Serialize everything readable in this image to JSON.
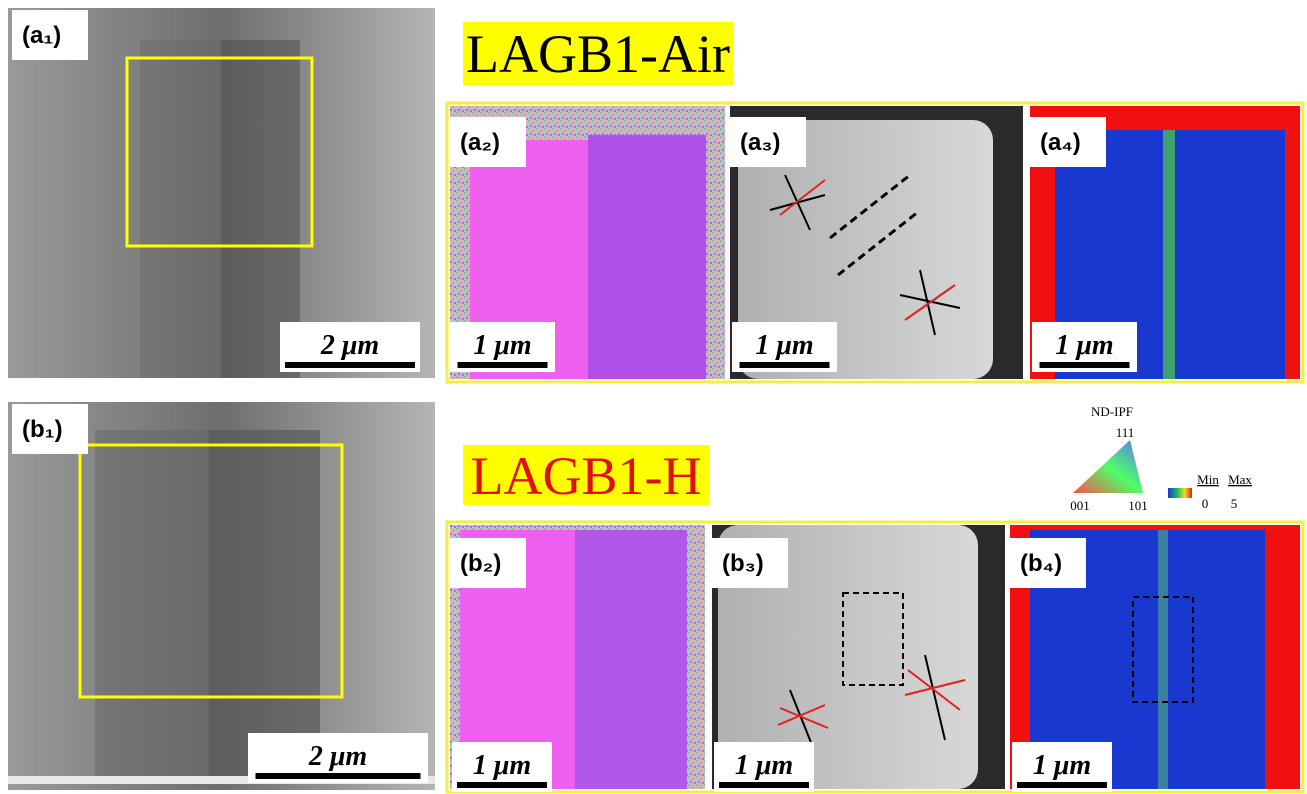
{
  "panels": [
    {
      "label": "(a₁)",
      "scale_bar": "2 μm"
    },
    {
      "label": "(a₂)",
      "scale_bar": "1 μm"
    },
    {
      "label": "(a₃)",
      "scale_bar": "1 μm"
    },
    {
      "label": "(a₄)",
      "scale_bar": "1 μm"
    },
    {
      "label": "(b₁)",
      "scale_bar": "2 μm"
    },
    {
      "label": "(b₂)",
      "scale_bar": "1 μm"
    },
    {
      "label": "(b₃)",
      "scale_bar": "1 μm"
    },
    {
      "label": "(b₄)",
      "scale_bar": "1 μm"
    }
  ],
  "titles": {
    "air": "LAGB1-Air",
    "h": "LAGB1-H"
  },
  "legend": {
    "title": "ND-IPF",
    "corner_top": "111",
    "corner_left": "001",
    "corner_right": "101",
    "bar_min": "Min",
    "bar_max": "Max",
    "bar_low": "0",
    "bar_high": "5"
  }
}
